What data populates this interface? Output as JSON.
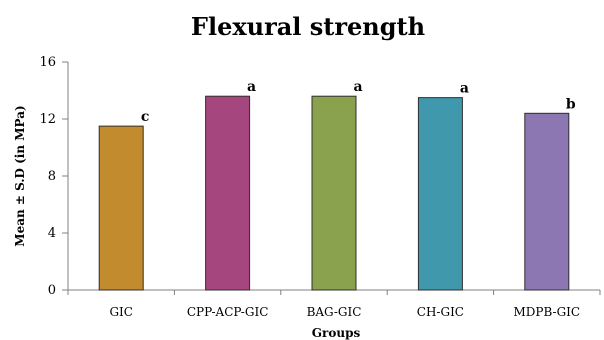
{
  "chart_data": {
    "type": "bar",
    "title": "Flexural strength",
    "xlabel": "Groups",
    "ylabel": "Mean ± S.D (in MPa)",
    "categories": [
      "GIC",
      "CPP-ACP-GIC",
      "BAG-GIC",
      "CH-GIC",
      "MDPB-GIC"
    ],
    "values": [
      11.5,
      13.6,
      13.6,
      13.5,
      12.4
    ],
    "annotations": [
      "c",
      "a",
      "a",
      "a",
      "b"
    ],
    "colors": [
      "#c28b2e",
      "#a5467f",
      "#8aa14d",
      "#3f98ab",
      "#8d77b2"
    ],
    "ylim": [
      0,
      16
    ],
    "yticks": [
      0,
      4,
      8,
      12,
      16
    ],
    "grid": false
  }
}
